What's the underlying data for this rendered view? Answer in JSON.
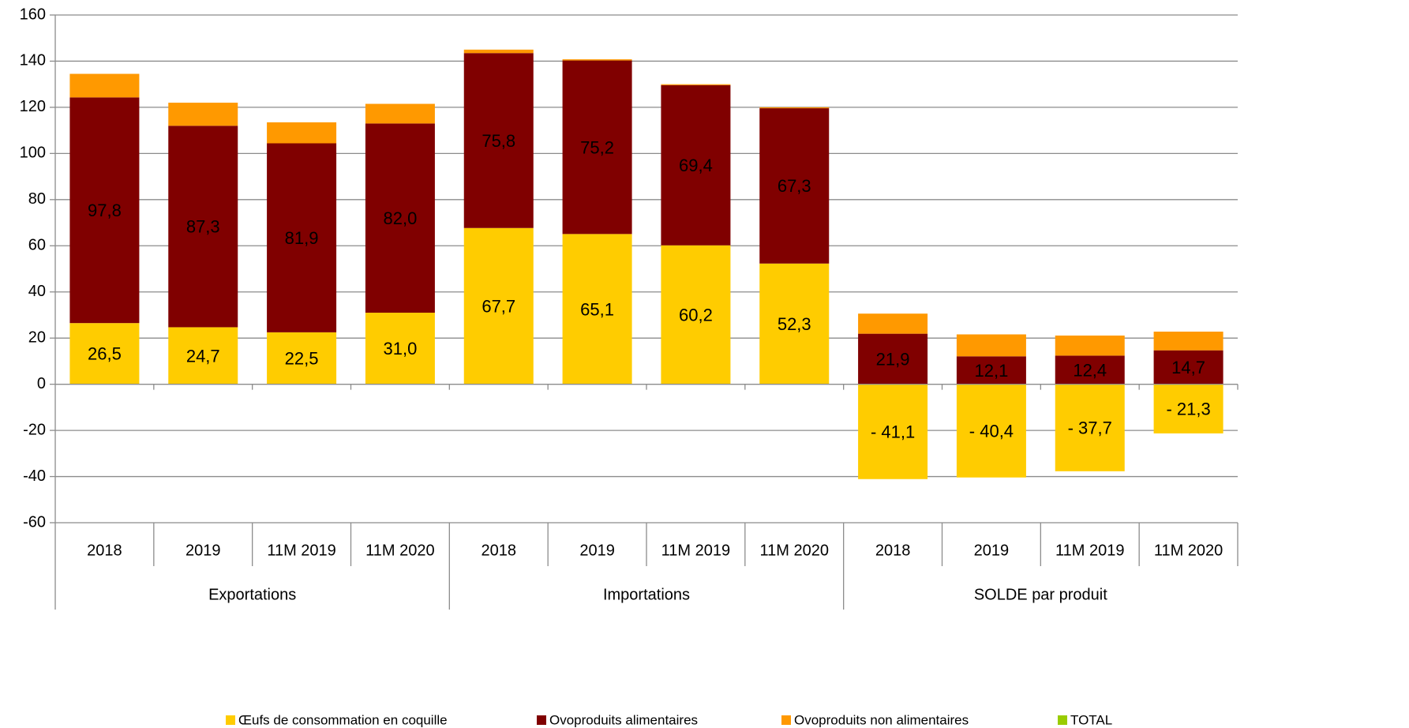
{
  "chart_data": {
    "type": "stacked_bar",
    "categories": [
      "2018",
      "2019",
      "11M 2019",
      "11M 2020",
      "2018",
      "2019",
      "11M 2019",
      "11M 2020",
      "2018",
      "2019",
      "11M 2019",
      "11M 2020"
    ],
    "groups": [
      "Exportations",
      "Importations",
      "SOLDE par produit"
    ],
    "series": [
      {
        "name": "Œufs de consommation en coquille",
        "color": "#ffcc00",
        "values": [
          26.5,
          24.7,
          22.5,
          31.0,
          67.7,
          65.1,
          60.2,
          52.3,
          -41.1,
          -40.4,
          -37.7,
          -21.3
        ],
        "value_labels": [
          "26,5",
          "24,7",
          "22,5",
          "31,0",
          "67,7",
          "65,1",
          "60,2",
          "52,3",
          "- 41,1",
          "- 40,4",
          "- 37,7",
          "- 21,3"
        ]
      },
      {
        "name": "Ovoproduits alimentaires",
        "color": "#800000",
        "values": [
          97.8,
          87.3,
          81.9,
          82.0,
          75.8,
          75.2,
          69.4,
          67.3,
          21.9,
          12.1,
          12.4,
          14.7
        ],
        "value_labels": [
          "97,8",
          "87,3",
          "81,9",
          "82,0",
          "75,8",
          "75,2",
          "69,4",
          "67,3",
          "21,9",
          "12,1",
          "12,4",
          "14,7"
        ]
      },
      {
        "name": "Ovoproduits non alimentaires",
        "color": "#ff9900",
        "values": [
          10.2,
          10.0,
          9.1,
          8.5,
          1.5,
          0.5,
          0.4,
          0.4,
          8.7,
          9.5,
          8.7,
          8.1
        ]
      },
      {
        "name": "TOTAL",
        "color": "#99cc00",
        "values": [
          null,
          null,
          null,
          null,
          null,
          null,
          null,
          null,
          null,
          null,
          null,
          null
        ]
      }
    ],
    "ylim": [
      -60,
      160
    ],
    "yticks": [
      -60,
      -40,
      -20,
      0,
      20,
      40,
      60,
      80,
      100,
      120,
      140,
      160
    ],
    "grid": true,
    "legend": "bottom"
  }
}
